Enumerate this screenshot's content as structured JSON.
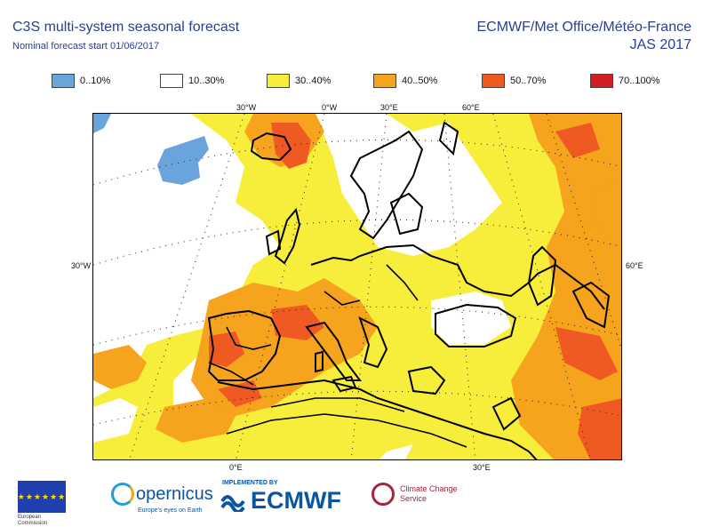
{
  "header": {
    "title": "C3S multi-system seasonal forecast",
    "subtitle": "Nominal forecast start 01/06/2017",
    "provider": "ECMWF/Met Office/Météo-France",
    "season": "JAS 2017"
  },
  "legend": [
    {
      "label": "0..10%",
      "color": "#6aa4dc"
    },
    {
      "label": "10..30%",
      "color": "#ffffff"
    },
    {
      "label": "30..40%",
      "color": "#f7ee3b"
    },
    {
      "label": "40..50%",
      "color": "#f6a31d"
    },
    {
      "label": "50..70%",
      "color": "#ef5a23"
    },
    {
      "label": "70..100%",
      "color": "#d11f25"
    }
  ],
  "grid_labels": {
    "top": [
      "30°W",
      "0°W",
      "30°E",
      "60°E"
    ],
    "left": "30°W",
    "right": "60°E",
    "bottom": [
      "0°E",
      "30°E"
    ]
  },
  "footer": {
    "eu_text": "European\nCommission",
    "copernicus": "opernicus",
    "copernicus_tag": "Europe's eyes on Earth",
    "implemented_by": "IMPLEMENTED BY",
    "ecmwf": "ECMWF",
    "c3s_line1": "Climate Change",
    "c3s_line2": "Service"
  }
}
